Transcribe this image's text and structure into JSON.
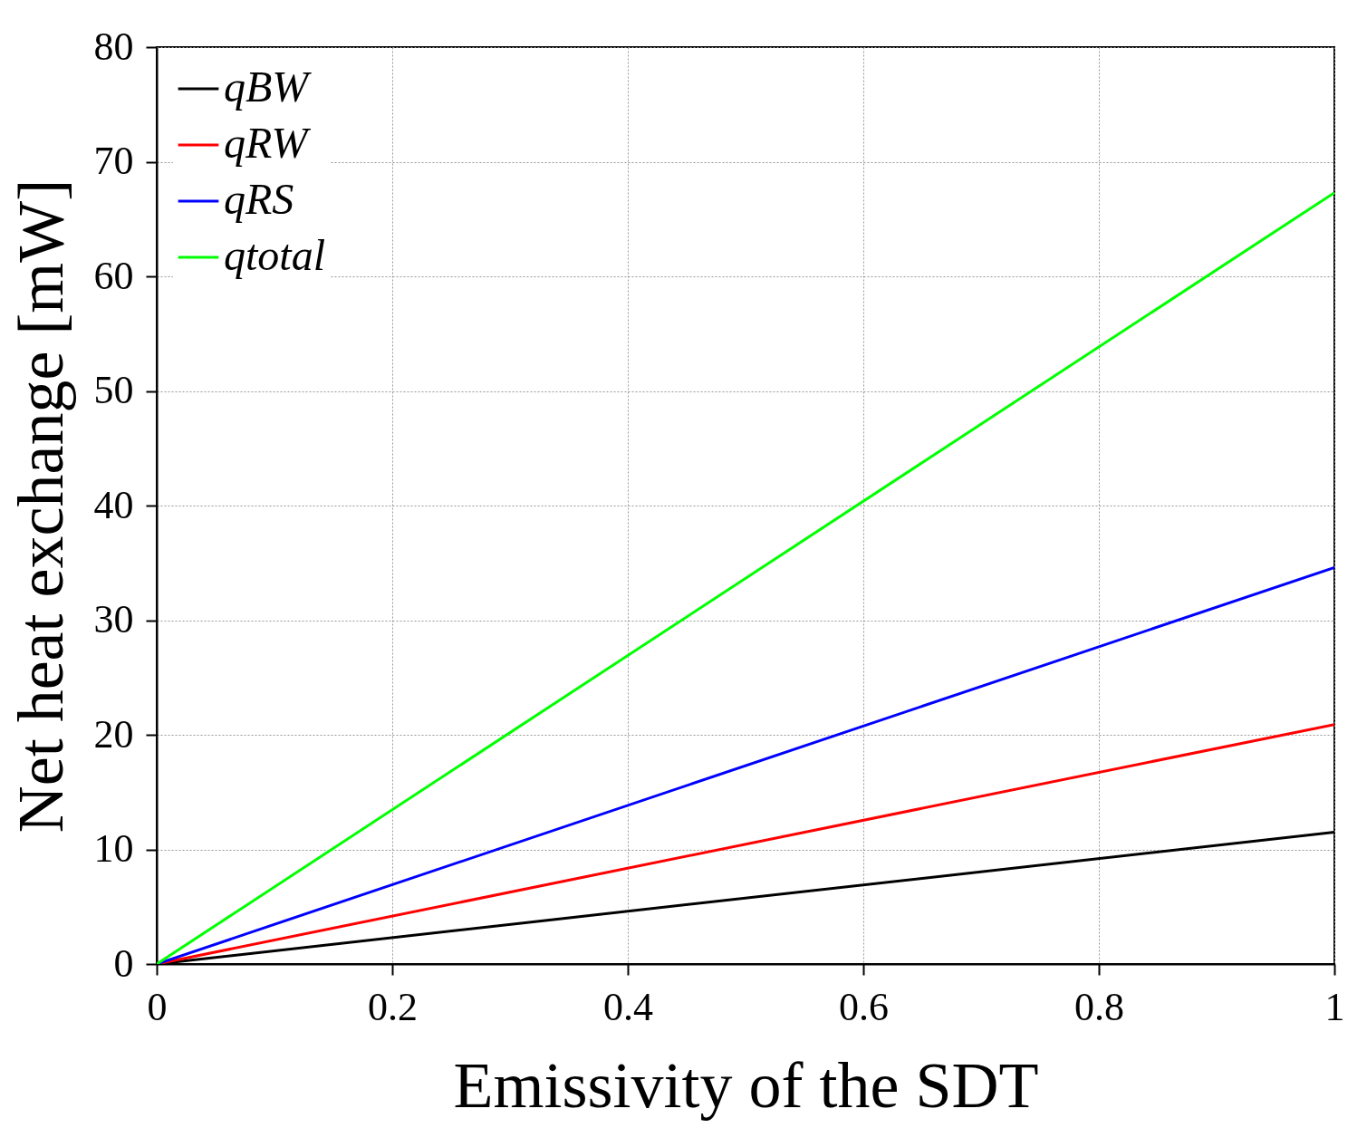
{
  "chart_data": {
    "type": "line",
    "xlabel": "Emissivity of the SDT",
    "ylabel": "Net heat exchange [mW]",
    "x": [
      0,
      1
    ],
    "series": [
      {
        "name": "qBW",
        "color": "#000000",
        "values": [
          0,
          11.5
        ]
      },
      {
        "name": "qRW",
        "color": "#ff0000",
        "values": [
          0,
          20.9
        ]
      },
      {
        "name": "qRS",
        "color": "#0000ff",
        "values": [
          0,
          34.6
        ]
      },
      {
        "name": "qtotal",
        "color": "#00ff00",
        "values": [
          0,
          67.3
        ]
      }
    ],
    "xlim": [
      0,
      1
    ],
    "xticks": [
      0,
      0.2,
      0.4,
      0.6,
      0.8,
      1
    ],
    "ylim": [
      0,
      80
    ],
    "yticks": [
      0,
      10,
      20,
      30,
      40,
      50,
      60,
      70,
      80
    ],
    "grid": true,
    "legend": "top left",
    "marker": "none",
    "line_style": "solid"
  }
}
